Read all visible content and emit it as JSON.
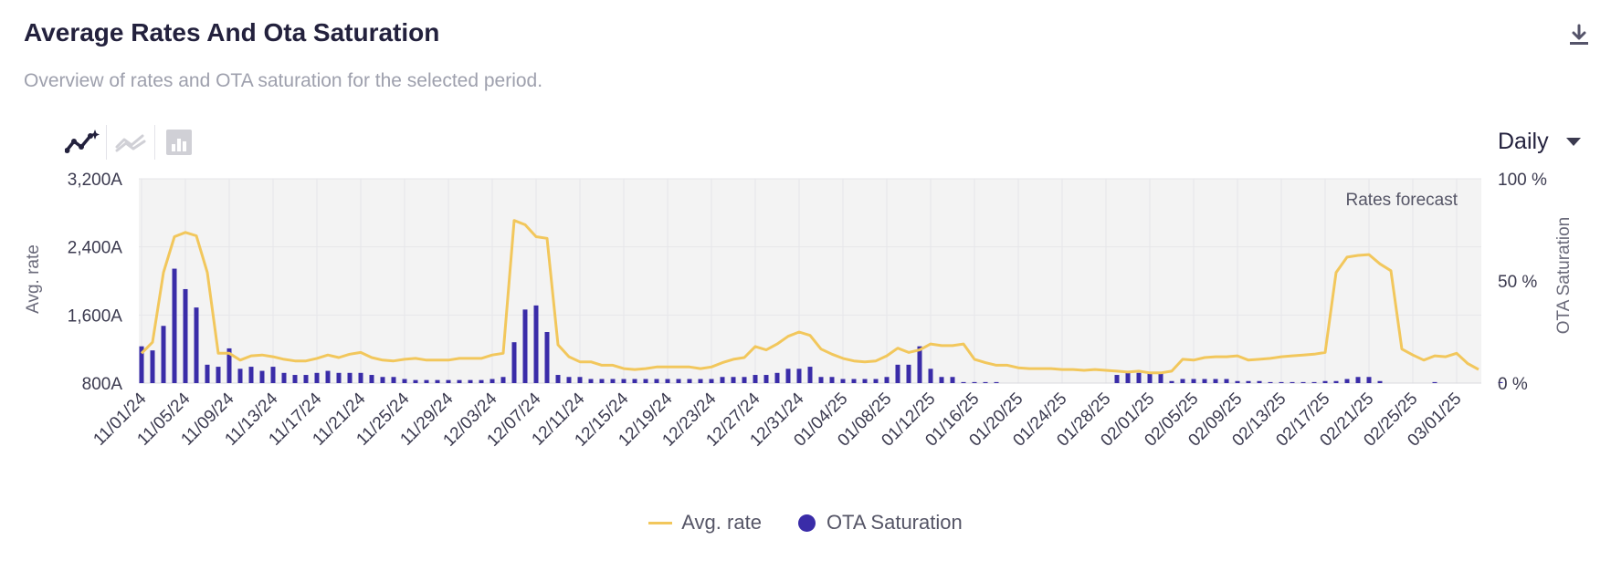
{
  "header": {
    "title": "Average Rates And Ota Saturation",
    "subtitle": "Overview of rates and OTA saturation for the selected period."
  },
  "icons": {
    "download": "download-icon",
    "tool_active": "sparkle-line-icon",
    "tool_2": "trend-line-icon",
    "tool_3": "bar-chart-icon",
    "dropdown": "caret-down-icon"
  },
  "period_select": {
    "selected": "Daily"
  },
  "colors": {
    "rate_line": "#f2c75c",
    "saturation_bars": "#3a2ca8",
    "plot_background": "#f3f3f3",
    "forecast_background": "#f6f6f6"
  },
  "chart_data": {
    "type": "bar",
    "title": "Average Rates And Ota Saturation",
    "x_tick_labels": [
      "11/01/24",
      "11/05/24",
      "11/09/24",
      "11/13/24",
      "11/17/24",
      "11/21/24",
      "11/25/24",
      "11/29/24",
      "12/03/24",
      "12/07/24",
      "12/11/24",
      "12/15/24",
      "12/19/24",
      "12/23/24",
      "12/27/24",
      "12/31/24",
      "01/04/25",
      "01/08/25",
      "01/12/25",
      "01/16/25",
      "01/20/25",
      "01/24/25",
      "01/28/25",
      "02/01/25",
      "02/05/25",
      "02/09/25",
      "02/13/25",
      "02/17/25",
      "02/21/25",
      "02/25/25",
      "03/01/25"
    ],
    "x_start": "11/01/24",
    "x_end": "03/02/25",
    "ylabel": "Avg. rate",
    "y2label": "OTA Saturation",
    "ylim": [
      800,
      3200
    ],
    "y2lim": [
      0,
      100
    ],
    "y_tick_labels": [
      "800A",
      "1,600A",
      "2,400A",
      "3,200A"
    ],
    "y_ticks": [
      800,
      1600,
      2400,
      3200
    ],
    "y2_tick_labels": [
      "0 %",
      "50 %",
      "100 %"
    ],
    "y2_ticks": [
      0,
      50,
      100
    ],
    "annotation": "Rates forecast",
    "forecast_region": [
      "11/01/24",
      "03/02/25"
    ],
    "grid": true,
    "legend_position": "bottom-center",
    "series": [
      {
        "name": "Avg. rate",
        "type": "line",
        "axis": "left",
        "values": [
          1150,
          1280,
          2100,
          2520,
          2570,
          2530,
          2100,
          1150,
          1150,
          1070,
          1120,
          1130,
          1110,
          1080,
          1060,
          1060,
          1090,
          1130,
          1100,
          1140,
          1160,
          1100,
          1070,
          1060,
          1080,
          1090,
          1070,
          1070,
          1070,
          1090,
          1090,
          1090,
          1130,
          1150,
          2710,
          2660,
          2520,
          2500,
          1250,
          1110,
          1050,
          1050,
          1010,
          1010,
          970,
          960,
          970,
          990,
          990,
          990,
          990,
          970,
          990,
          1040,
          1080,
          1100,
          1230,
          1190,
          1260,
          1350,
          1400,
          1360,
          1200,
          1140,
          1090,
          1060,
          1050,
          1060,
          1120,
          1210,
          1160,
          1190,
          1260,
          1240,
          1240,
          1260,
          1080,
          1040,
          1010,
          1010,
          980,
          970,
          970,
          970,
          960,
          960,
          950,
          960,
          950,
          940,
          930,
          940,
          920,
          920,
          940,
          1080,
          1070,
          1100,
          1110,
          1110,
          1120,
          1070,
          1080,
          1090,
          1110,
          1120,
          1130,
          1140,
          1160,
          2100,
          2280,
          2300,
          2310,
          2200,
          2120,
          1200,
          1130,
          1070,
          1120,
          1110,
          1150,
          1030,
          960
        ],
        "marker_every": 4,
        "marker_start_index": 0
      },
      {
        "name": "OTA Saturation",
        "type": "bar",
        "axis": "right",
        "values": [
          18,
          16,
          28,
          56,
          46,
          37,
          9,
          8,
          17,
          7,
          8,
          6,
          8,
          5,
          4,
          4,
          5,
          6,
          5,
          5,
          5,
          4,
          3,
          3,
          2,
          1.5,
          1.5,
          1.5,
          1.5,
          1.5,
          1.5,
          1.5,
          2,
          3,
          20,
          36,
          38,
          25,
          4,
          3,
          3,
          2,
          2,
          2,
          2,
          2,
          2,
          2,
          2,
          2,
          2,
          2,
          2,
          3,
          3,
          3,
          4,
          4,
          5,
          7,
          7,
          8,
          3,
          3,
          2,
          2,
          2,
          2,
          3,
          9,
          9,
          18,
          7,
          3,
          3,
          0.5,
          0.5,
          0.5,
          0.5,
          0,
          0,
          0,
          0,
          0,
          0,
          0,
          0,
          0,
          0,
          4,
          5,
          5,
          5,
          5,
          1,
          2,
          2,
          2,
          2,
          2,
          1,
          1,
          1,
          0.5,
          0.5,
          0.5,
          0.5,
          0.5,
          1,
          1,
          2,
          3,
          3,
          1,
          0,
          0,
          0,
          0,
          0.5,
          0,
          0,
          0,
          0,
          0,
          0.5,
          0
        ]
      }
    ]
  },
  "legend": {
    "rate_label": "Avg. rate",
    "saturation_label": "OTA Saturation"
  }
}
